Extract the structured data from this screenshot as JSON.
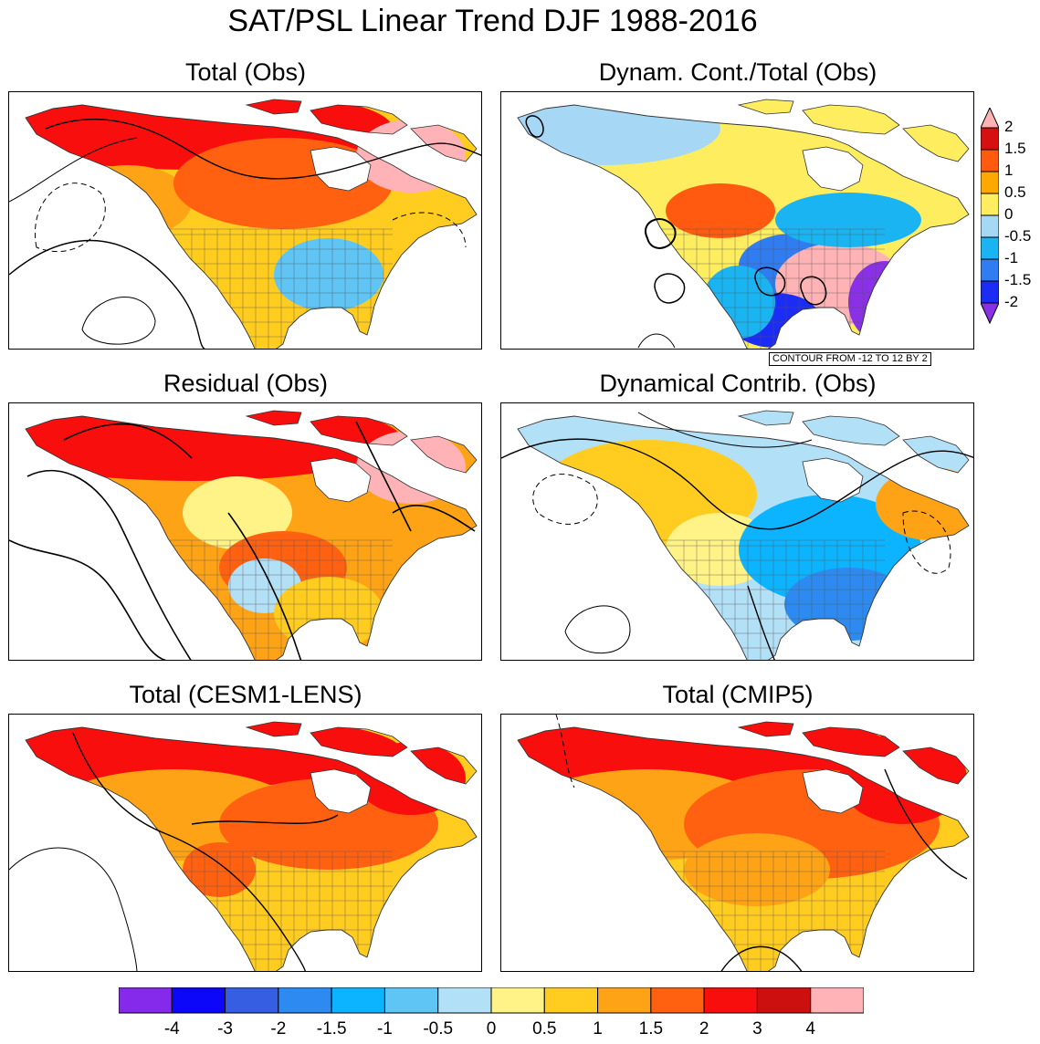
{
  "figure": {
    "title": "SAT/PSL Linear Trend DJF 1988-2016"
  },
  "panels": [
    {
      "title": "Total (Obs)",
      "variant": "warm_total_obs"
    },
    {
      "title": "Dynam. Cont./Total (Obs)",
      "variant": "ratio",
      "note": "CONTOUR FROM -12 TO 12 BY 2"
    },
    {
      "title": "Residual (Obs)",
      "variant": "warm_residual"
    },
    {
      "title": "Dynamical Contrib. (Obs)",
      "variant": "dynamical"
    },
    {
      "title": "Total (CESM1-LENS)",
      "variant": "lens"
    },
    {
      "title": "Total (CMIP5)",
      "variant": "cmip5"
    }
  ],
  "colorbar_ratio": {
    "labels": [
      "2",
      "1.5",
      "1",
      "0.5",
      "0",
      "-0.5",
      "-1",
      "-1.5",
      "-2"
    ],
    "colors": [
      "#ffb3b5",
      "#d6100f",
      "#ff5a0f",
      "#ffa800",
      "#ffed60",
      "#a6d8f5",
      "#1ab4f2",
      "#2f7df0",
      "#1b2cf5",
      "#8a30e6"
    ]
  },
  "colorbar_main": {
    "labels": [
      "-4",
      "-3",
      "-2",
      "-1.5",
      "-1",
      "-0.5",
      "0",
      "0.5",
      "1",
      "1.5",
      "2",
      "3",
      "4"
    ],
    "colors": [
      "#8529ea",
      "#0d07fa",
      "#355ee3",
      "#2c8af0",
      "#0cb4ff",
      "#5ec5f5",
      "#b2e0f6",
      "#fff286",
      "#ffcc1f",
      "#ffa316",
      "#ff6110",
      "#f90e0e",
      "#cc0f0f",
      "#ffb3b6"
    ]
  }
}
